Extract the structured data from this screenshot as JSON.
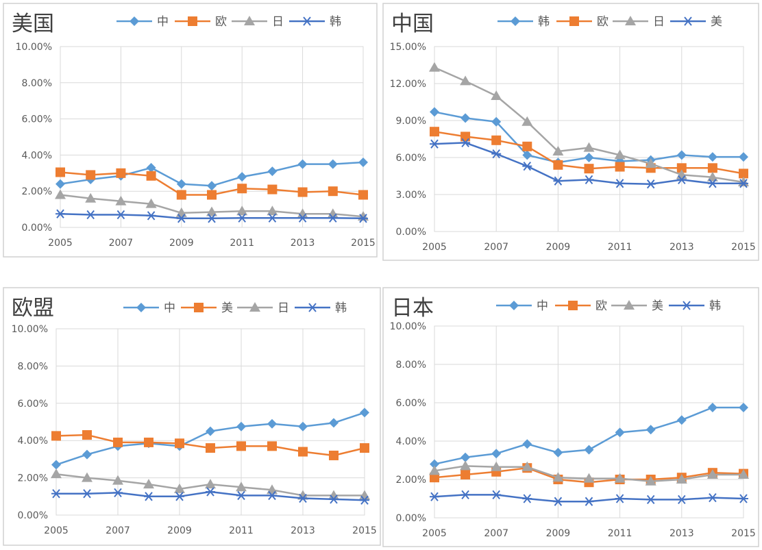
{
  "chart_data": [
    {
      "type": "line",
      "title": "美国",
      "x": [
        2005,
        2006,
        2007,
        2008,
        2009,
        2010,
        2011,
        2012,
        2013,
        2014,
        2015
      ],
      "xtick_labels": [
        "2005",
        "2007",
        "2009",
        "2011",
        "2013",
        "2015"
      ],
      "ylim": [
        0,
        10
      ],
      "yticks": [
        0,
        2,
        4,
        6,
        8,
        10
      ],
      "ytick_labels": [
        "0.00%",
        "2.00%",
        "4.00%",
        "6.00%",
        "8.00%",
        "10.00%"
      ],
      "grid": true,
      "legend": "top",
      "series": [
        {
          "name": "中",
          "values": [
            2.4,
            2.65,
            2.85,
            3.3,
            2.4,
            2.3,
            2.8,
            3.1,
            3.5,
            3.5,
            3.6
          ]
        },
        {
          "name": "欧",
          "values": [
            3.05,
            2.9,
            3.0,
            2.85,
            1.8,
            1.8,
            2.15,
            2.1,
            1.95,
            2.0,
            1.8
          ]
        },
        {
          "name": "日",
          "values": [
            1.8,
            1.6,
            1.45,
            1.3,
            0.8,
            0.85,
            0.9,
            0.9,
            0.75,
            0.75,
            0.6
          ]
        },
        {
          "name": "韩",
          "values": [
            0.75,
            0.7,
            0.7,
            0.65,
            0.5,
            0.5,
            0.52,
            0.52,
            0.52,
            0.52,
            0.5
          ]
        }
      ]
    },
    {
      "type": "line",
      "title": "中国",
      "x": [
        2005,
        2006,
        2007,
        2008,
        2009,
        2010,
        2011,
        2012,
        2013,
        2014,
        2015
      ],
      "xtick_labels": [
        "2005",
        "2007",
        "2009",
        "2011",
        "2013",
        "2015"
      ],
      "ylim": [
        0,
        15
      ],
      "yticks": [
        0,
        3,
        6,
        9,
        12,
        15
      ],
      "ytick_labels": [
        "0.00%",
        "3.00%",
        "6.00%",
        "9.00%",
        "12.00%",
        "15.00%"
      ],
      "grid": true,
      "legend": "top",
      "series": [
        {
          "name": "韩",
          "values": [
            9.7,
            9.2,
            8.9,
            6.2,
            5.6,
            6.0,
            5.7,
            5.8,
            6.2,
            6.05,
            6.05
          ]
        },
        {
          "name": "欧",
          "values": [
            8.1,
            7.7,
            7.4,
            6.9,
            5.4,
            5.1,
            5.25,
            5.15,
            5.15,
            5.15,
            4.7
          ]
        },
        {
          "name": "日",
          "values": [
            13.3,
            12.2,
            11.0,
            8.9,
            6.5,
            6.8,
            6.2,
            5.5,
            4.6,
            4.4,
            4.0
          ]
        },
        {
          "name": "美",
          "values": [
            7.1,
            7.2,
            6.3,
            5.3,
            4.1,
            4.2,
            3.9,
            3.85,
            4.2,
            3.9,
            3.9
          ]
        }
      ]
    },
    {
      "type": "line",
      "title": "欧盟",
      "x": [
        2005,
        2006,
        2007,
        2008,
        2009,
        2010,
        2011,
        2012,
        2013,
        2014,
        2015
      ],
      "xtick_labels": [
        "2005",
        "2007",
        "2009",
        "2011",
        "2013",
        "2015"
      ],
      "ylim": [
        0,
        10
      ],
      "yticks": [
        0,
        2,
        4,
        6,
        8,
        10
      ],
      "ytick_labels": [
        "0.00%",
        "2.00%",
        "4.00%",
        "6.00%",
        "8.00%",
        "10.00%"
      ],
      "grid": true,
      "legend": "top",
      "series": [
        {
          "name": "中",
          "values": [
            2.7,
            3.25,
            3.7,
            3.85,
            3.7,
            4.5,
            4.75,
            4.9,
            4.75,
            4.95,
            5.5
          ]
        },
        {
          "name": "美",
          "values": [
            4.25,
            4.3,
            3.9,
            3.9,
            3.85,
            3.6,
            3.7,
            3.7,
            3.4,
            3.2,
            3.6
          ]
        },
        {
          "name": "日",
          "values": [
            2.2,
            2.0,
            1.85,
            1.65,
            1.4,
            1.65,
            1.5,
            1.35,
            1.05,
            1.05,
            1.05
          ]
        },
        {
          "name": "韩",
          "values": [
            1.15,
            1.15,
            1.2,
            1.0,
            1.0,
            1.25,
            1.05,
            1.05,
            0.9,
            0.85,
            0.8
          ]
        }
      ]
    },
    {
      "type": "line",
      "title": "日本",
      "x": [
        2005,
        2006,
        2007,
        2008,
        2009,
        2010,
        2011,
        2012,
        2013,
        2014,
        2015
      ],
      "xtick_labels": [
        "2005",
        "2007",
        "2009",
        "2011",
        "2013",
        "2015"
      ],
      "ylim": [
        0,
        10
      ],
      "yticks": [
        0,
        2,
        4,
        6,
        8,
        10
      ],
      "ytick_labels": [
        "0.00%",
        "2.00%",
        "4.00%",
        "6.00%",
        "8.00%",
        "10.00%"
      ],
      "grid": true,
      "legend": "top",
      "series": [
        {
          "name": "中",
          "values": [
            2.8,
            3.15,
            3.35,
            3.85,
            3.4,
            3.55,
            4.45,
            4.6,
            5.1,
            5.75,
            5.75
          ]
        },
        {
          "name": "欧",
          "values": [
            2.1,
            2.25,
            2.4,
            2.6,
            2.0,
            1.85,
            2.0,
            2.0,
            2.1,
            2.35,
            2.3
          ]
        },
        {
          "name": "美",
          "values": [
            2.45,
            2.7,
            2.65,
            2.65,
            2.1,
            2.05,
            2.05,
            1.9,
            2.0,
            2.25,
            2.25
          ]
        },
        {
          "name": "韩",
          "values": [
            1.1,
            1.2,
            1.2,
            1.0,
            0.85,
            0.85,
            1.0,
            0.95,
            0.95,
            1.05,
            1.0
          ]
        }
      ]
    }
  ],
  "style": {
    "series_colors": [
      "#5b9bd5",
      "#ed7d31",
      "#a5a5a5",
      "#4472c4"
    ],
    "series_markers": [
      "diamond",
      "square",
      "triangle",
      "asterisk"
    ],
    "grid_color": "#d9d9d9",
    "panel_border_color": "#d0d0d0",
    "tick_label_color": "#595959",
    "title_color": "#404040"
  }
}
